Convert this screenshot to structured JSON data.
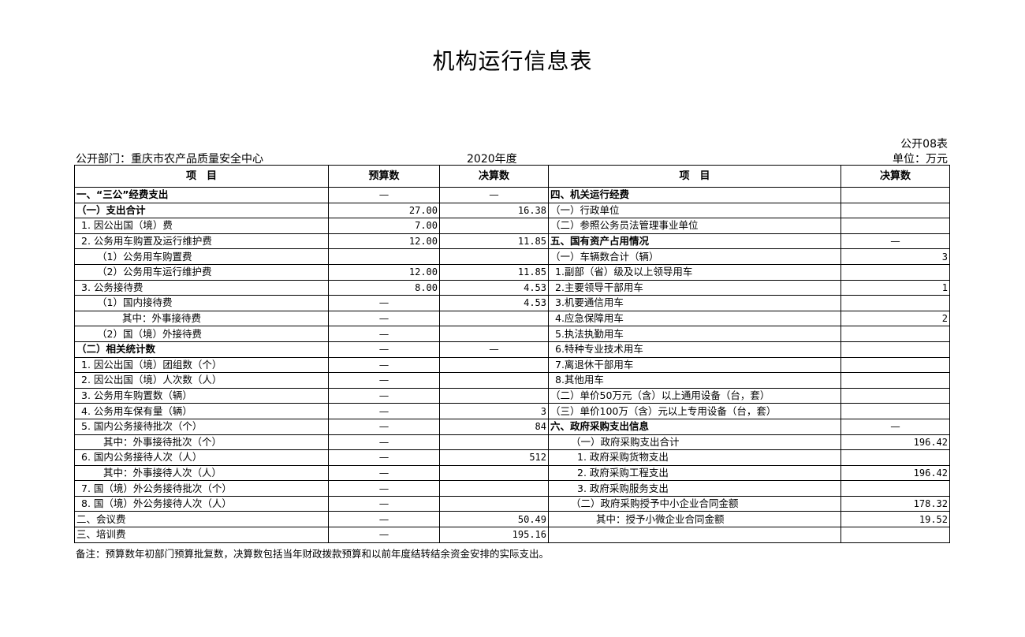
{
  "title": "机构运行信息表",
  "table_no": "公开08表",
  "unit": "单位：万元",
  "department": "公开部门：重庆市农产品质量安全中心",
  "year": "2020年度",
  "headers": {
    "item": "项　目",
    "budget": "预算数",
    "final": "决算数",
    "item2": "项　目",
    "final2": "决算数"
  },
  "left_rows": [
    {
      "item": "一、“三公”经费支出",
      "budget": "—",
      "final": "—"
    },
    {
      "item": "（一）支出合计",
      "budget": "27.00",
      "final": "16.38"
    },
    {
      "item": "1. 因公出国（境）费",
      "budget": "7.00",
      "final": ""
    },
    {
      "item": "2. 公务用车购置及运行维护费",
      "budget": "12.00",
      "final": "11.85"
    },
    {
      "item": "（1）公务用车购置费",
      "budget": "",
      "final": ""
    },
    {
      "item": "（2）公务用车运行维护费",
      "budget": "12.00",
      "final": "11.85"
    },
    {
      "item": "3. 公务接待费",
      "budget": "8.00",
      "final": "4.53"
    },
    {
      "item": "（1）国内接待费",
      "budget": "—",
      "final": "4.53"
    },
    {
      "item": "其中：外事接待费",
      "budget": "—",
      "final": ""
    },
    {
      "item": "（2）国（境）外接待费",
      "budget": "—",
      "final": ""
    },
    {
      "item": "（二）相关统计数",
      "budget": "—",
      "final": "—"
    },
    {
      "item": "1. 因公出国（境）团组数（个）",
      "budget": "—",
      "final": ""
    },
    {
      "item": "2. 因公出国（境）人次数（人）",
      "budget": "—",
      "final": ""
    },
    {
      "item": "3. 公务用车购置数（辆）",
      "budget": "—",
      "final": ""
    },
    {
      "item": "4. 公务用车保有量（辆）",
      "budget": "—",
      "final": "3"
    },
    {
      "item": "5. 国内公务接待批次（个）",
      "budget": "—",
      "final": "84"
    },
    {
      "item": "其中：外事接待批次（个）",
      "budget": "—",
      "final": ""
    },
    {
      "item": "6. 国内公务接待人次（人）",
      "budget": "—",
      "final": "512"
    },
    {
      "item": "其中：外事接待人次（人）",
      "budget": "—",
      "final": ""
    },
    {
      "item": "7. 国（境）外公务接待批次（个）",
      "budget": "—",
      "final": ""
    },
    {
      "item": "8. 国（境）外公务接待人次（人）",
      "budget": "—",
      "final": ""
    },
    {
      "item": "二、会议费",
      "budget": "—",
      "final": "50.49"
    },
    {
      "item": "三、培训费",
      "budget": "—",
      "final": "195.16"
    }
  ],
  "right_rows": [
    {
      "item": "四、机关运行经费",
      "final": ""
    },
    {
      "item": "（一）行政单位",
      "final": ""
    },
    {
      "item": "（二）参照公务员法管理事业单位",
      "final": ""
    },
    {
      "item": "五、国有资产占用情况",
      "final": "—"
    },
    {
      "item": "（一）车辆数合计（辆）",
      "final": "3"
    },
    {
      "item": "1.副部（省）级及以上领导用车",
      "final": ""
    },
    {
      "item": "2.主要领导干部用车",
      "final": "1"
    },
    {
      "item": "3.机要通信用车",
      "final": ""
    },
    {
      "item": "4.应急保障用车",
      "final": "2"
    },
    {
      "item": "5.执法执勤用车",
      "final": ""
    },
    {
      "item": "6.特种专业技术用车",
      "final": ""
    },
    {
      "item": "7.离退休干部用车",
      "final": ""
    },
    {
      "item": "8.其他用车",
      "final": ""
    },
    {
      "item": "（二）单价50万元（含）以上通用设备（台，套）",
      "final": ""
    },
    {
      "item": "（三）单价100万（含）元以上专用设备（台，套）",
      "final": ""
    },
    {
      "item": "六、政府采购支出信息",
      "final": "—"
    },
    {
      "item": "（一）政府采购支出合计",
      "final": "196.42"
    },
    {
      "item": "1. 政府采购货物支出",
      "final": ""
    },
    {
      "item": "2. 政府采购工程支出",
      "final": "196.42"
    },
    {
      "item": "3. 政府采购服务支出",
      "final": ""
    },
    {
      "item": "（二）政府采购授予中小企业合同金额",
      "final": "178.32"
    },
    {
      "item": "其中：授予小微企业合同金额",
      "final": "19.52"
    },
    {
      "item": "",
      "final": ""
    }
  ],
  "note": "备注：预算数年初部门预算批复数，决算数包括当年财政拨款预算和以前年度结转结余资金安排的实际支出。"
}
